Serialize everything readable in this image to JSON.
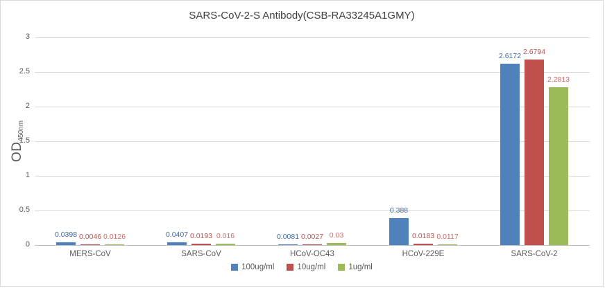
{
  "chart_data": {
    "type": "bar",
    "title": "SARS-CoV-2-S Antibody(CSB-RA33245A1GMY)",
    "ylabel": {
      "main": "OD",
      "subscript": "450nm"
    },
    "ylim": [
      0,
      3
    ],
    "ytick_step": 0.5,
    "ytick_labels": [
      "0",
      "0.5",
      "1",
      "1.5",
      "2",
      "2.5",
      "3"
    ],
    "grid": true,
    "legend_position": "bottom-center",
    "categories": [
      "MERS-CoV",
      "SARS-CoV",
      "HCoV-OC43",
      "HCoV-229E",
      "SARS-CoV-2"
    ],
    "series": [
      {
        "name": "100ug/ml",
        "color": "#4F81BD",
        "label_color": "#44689B",
        "values": [
          0.0398,
          0.0407,
          0.0081,
          0.388,
          2.6172
        ],
        "labels": [
          "0.0398",
          "0.0407",
          "0.0081",
          "0.388",
          "2.6172"
        ]
      },
      {
        "name": "10ug/ml",
        "color": "#C0504D",
        "label_color": "#C0504D",
        "values": [
          0.0046,
          0.0193,
          0.0027,
          0.0183,
          2.6794
        ],
        "labels": [
          "0.0046",
          "0.0193",
          "0.0027",
          "0.0183",
          "2.6794"
        ]
      },
      {
        "name": "1ug/ml",
        "color": "#9BBB59",
        "label_color": "#CF6A66",
        "values": [
          0.0126,
          0.016,
          0.03,
          0.0117,
          2.2813
        ],
        "labels": [
          "0.0126",
          "0.016",
          "0.03",
          "0.0117",
          "2.2813"
        ]
      }
    ],
    "colors": {
      "gridline": "#d9d9d9",
      "axis_line": "#bfbfbf",
      "tick_text": "#595959",
      "title_text": "#3f3f3f"
    }
  }
}
